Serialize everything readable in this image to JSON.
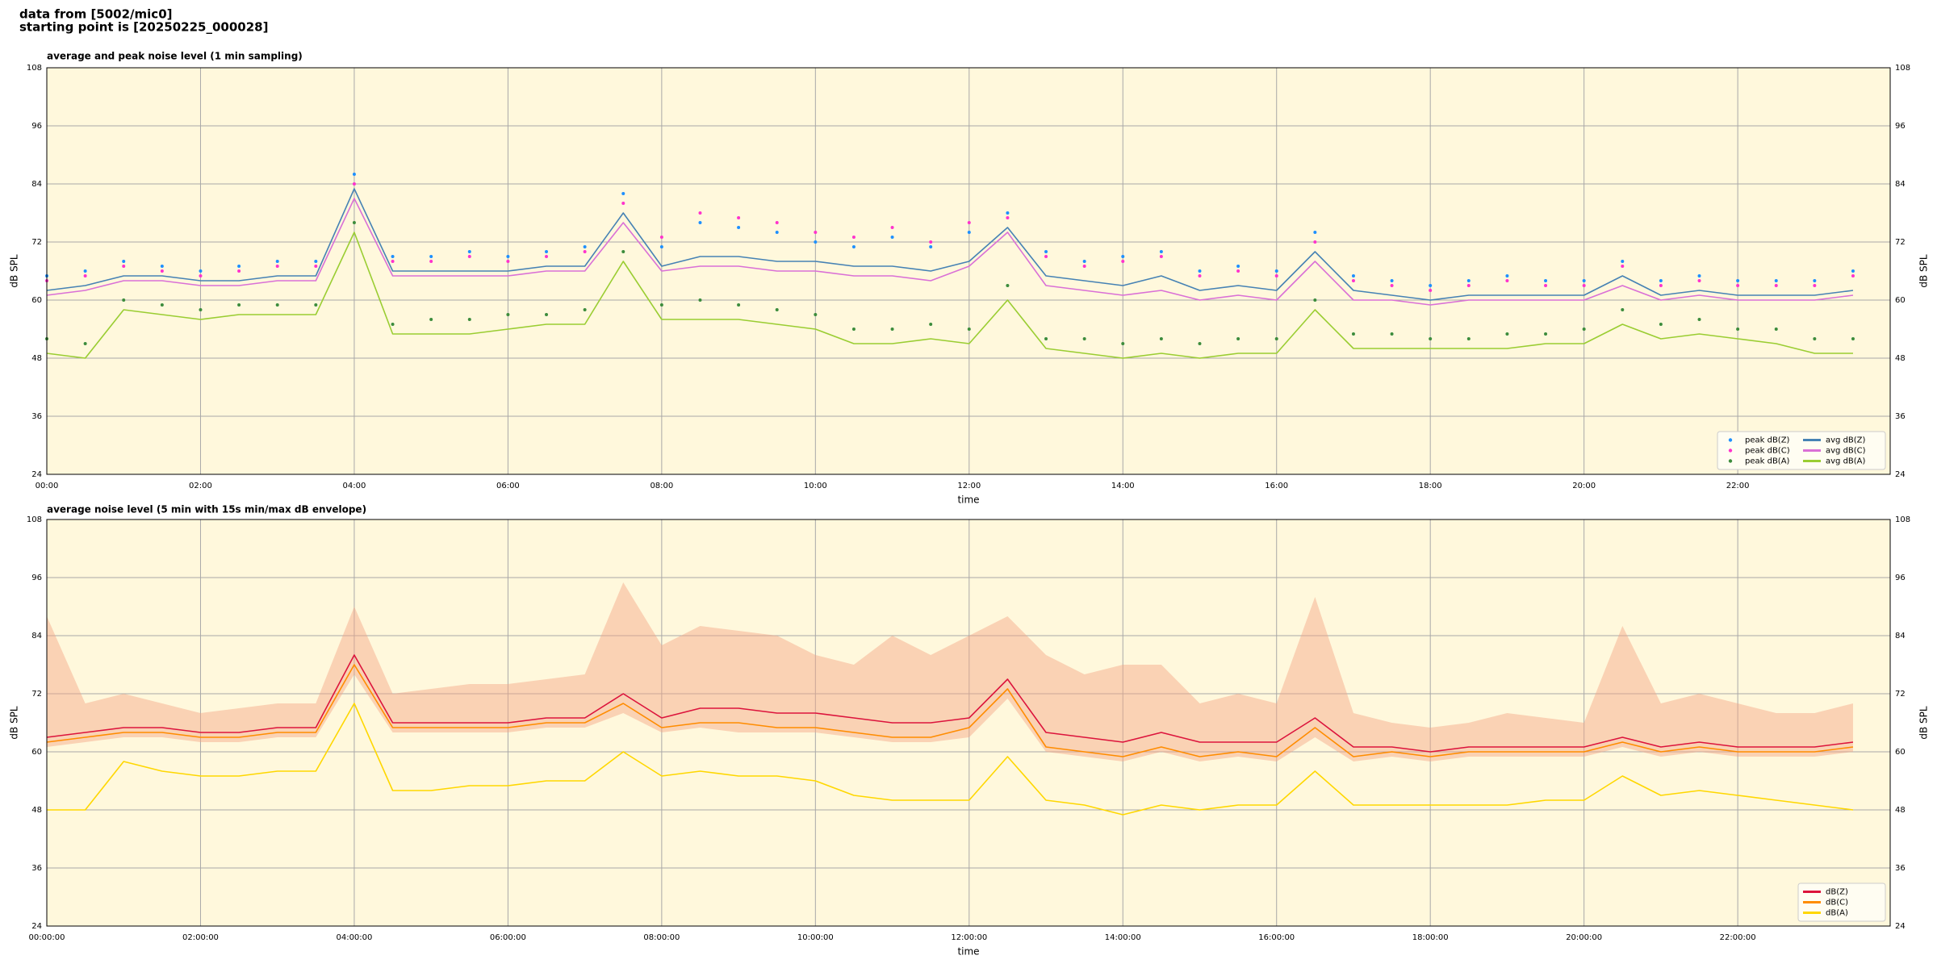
{
  "header": {
    "lines": [
      "data from [5002/mic0]",
      "starting point is [20250225_000028]"
    ]
  },
  "chart_data": [
    {
      "type": "line",
      "title": "average and peak noise level (1 min sampling)",
      "x_label": "time",
      "y_label": "dB SPL",
      "x": [
        "00:00",
        "00:30",
        "01:00",
        "01:30",
        "02:00",
        "02:30",
        "03:00",
        "03:30",
        "04:00",
        "04:30",
        "05:00",
        "05:30",
        "06:00",
        "06:30",
        "07:00",
        "07:30",
        "08:00",
        "08:30",
        "09:00",
        "09:30",
        "10:00",
        "10:30",
        "11:00",
        "11:30",
        "12:00",
        "12:30",
        "13:00",
        "13:30",
        "14:00",
        "14:30",
        "15:00",
        "15:30",
        "16:00",
        "16:30",
        "17:00",
        "17:30",
        "18:00",
        "18:30",
        "19:00",
        "19:30",
        "20:00",
        "20:30",
        "21:00",
        "21:30",
        "22:00",
        "22:30",
        "23:00",
        "23:30"
      ],
      "xlim": [
        "00:00",
        "23:59"
      ],
      "xticks": [
        "00:00",
        "02:00",
        "04:00",
        "06:00",
        "08:00",
        "10:00",
        "12:00",
        "14:00",
        "16:00",
        "18:00",
        "20:00",
        "22:00"
      ],
      "ylim": [
        24,
        108
      ],
      "yticks": [
        24,
        36,
        48,
        60,
        72,
        84,
        96,
        108
      ],
      "grid": true,
      "background": "#fff8dc",
      "legend": "lower right",
      "legend_columns": 2,
      "series": [
        {
          "name": "peak dB(Z)",
          "mark": "dot",
          "color": "#1e90ff",
          "values": [
            65,
            66,
            68,
            67,
            66,
            67,
            68,
            68,
            86,
            69,
            69,
            70,
            69,
            70,
            71,
            82,
            71,
            76,
            75,
            74,
            72,
            71,
            73,
            71,
            74,
            78,
            70,
            68,
            69,
            70,
            66,
            67,
            66,
            74,
            65,
            64,
            63,
            64,
            65,
            64,
            64,
            68,
            64,
            65,
            64,
            64,
            64,
            66
          ]
        },
        {
          "name": "peak dB(C)",
          "mark": "dot",
          "color": "#ff33cc",
          "values": [
            64,
            65,
            67,
            66,
            65,
            66,
            67,
            67,
            84,
            68,
            68,
            69,
            68,
            69,
            70,
            80,
            73,
            78,
            77,
            76,
            74,
            73,
            75,
            72,
            76,
            77,
            69,
            67,
            68,
            69,
            65,
            66,
            65,
            72,
            64,
            63,
            62,
            63,
            64,
            63,
            63,
            67,
            63,
            64,
            63,
            63,
            63,
            65
          ]
        },
        {
          "name": "peak dB(A)",
          "mark": "dot",
          "color": "#3c8c3c",
          "values": [
            52,
            51,
            60,
            59,
            58,
            59,
            59,
            59,
            76,
            55,
            56,
            56,
            57,
            57,
            58,
            70,
            59,
            60,
            59,
            58,
            57,
            54,
            54,
            55,
            54,
            63,
            52,
            52,
            51,
            52,
            51,
            52,
            52,
            60,
            53,
            53,
            52,
            52,
            53,
            53,
            54,
            58,
            55,
            56,
            54,
            54,
            52,
            52
          ]
        },
        {
          "name": "avg dB(Z)",
          "mark": "line",
          "color": "#4682b4",
          "values": [
            62,
            63,
            65,
            65,
            64,
            64,
            65,
            65,
            83,
            66,
            66,
            66,
            66,
            67,
            67,
            78,
            67,
            69,
            69,
            68,
            68,
            67,
            67,
            66,
            68,
            75,
            65,
            64,
            63,
            65,
            62,
            63,
            62,
            70,
            62,
            61,
            60,
            61,
            61,
            61,
            61,
            65,
            61,
            62,
            61,
            61,
            61,
            62
          ]
        },
        {
          "name": "avg dB(C)",
          "mark": "line",
          "color": "#da70d6",
          "values": [
            61,
            62,
            64,
            64,
            63,
            63,
            64,
            64,
            81,
            65,
            65,
            65,
            65,
            66,
            66,
            76,
            66,
            67,
            67,
            66,
            66,
            65,
            65,
            64,
            67,
            74,
            63,
            62,
            61,
            62,
            60,
            61,
            60,
            68,
            60,
            60,
            59,
            60,
            60,
            60,
            60,
            63,
            60,
            61,
            60,
            60,
            60,
            61
          ]
        },
        {
          "name": "avg dB(A)",
          "mark": "line",
          "color": "#9acd32",
          "values": [
            49,
            48,
            58,
            57,
            56,
            57,
            57,
            57,
            74,
            53,
            53,
            53,
            54,
            55,
            55,
            68,
            56,
            56,
            56,
            55,
            54,
            51,
            51,
            52,
            51,
            60,
            50,
            49,
            48,
            49,
            48,
            49,
            49,
            58,
            50,
            50,
            50,
            50,
            50,
            51,
            51,
            55,
            52,
            53,
            52,
            51,
            49,
            49
          ]
        }
      ]
    },
    {
      "type": "line",
      "title": "average noise level (5 min with 15s min/max dB envelope)",
      "x_label": "time",
      "y_label": "dB SPL",
      "x": [
        "00:00:00",
        "00:30:00",
        "01:00:00",
        "01:30:00",
        "02:00:00",
        "02:30:00",
        "03:00:00",
        "03:30:00",
        "04:00:00",
        "04:30:00",
        "05:00:00",
        "05:30:00",
        "06:00:00",
        "06:30:00",
        "07:00:00",
        "07:30:00",
        "08:00:00",
        "08:30:00",
        "09:00:00",
        "09:30:00",
        "10:00:00",
        "10:30:00",
        "11:00:00",
        "11:30:00",
        "12:00:00",
        "12:30:00",
        "13:00:00",
        "13:30:00",
        "14:00:00",
        "14:30:00",
        "15:00:00",
        "15:30:00",
        "16:00:00",
        "16:30:00",
        "17:00:00",
        "17:30:00",
        "18:00:00",
        "18:30:00",
        "19:00:00",
        "19:30:00",
        "20:00:00",
        "20:30:00",
        "21:00:00",
        "21:30:00",
        "22:00:00",
        "22:30:00",
        "23:00:00",
        "23:30:00"
      ],
      "xlim": [
        "00:00:00",
        "23:59:00"
      ],
      "xticks": [
        "00:00:00",
        "02:00:00",
        "04:00:00",
        "06:00:00",
        "08:00:00",
        "10:00:00",
        "12:00:00",
        "14:00:00",
        "16:00:00",
        "18:00:00",
        "20:00:00",
        "22:00:00"
      ],
      "ylim": [
        24,
        108
      ],
      "yticks": [
        24,
        36,
        48,
        60,
        72,
        84,
        96,
        108
      ],
      "grid": true,
      "background": "#fff8dc",
      "legend": "lower right",
      "legend_columns": 1,
      "envelope": {
        "color": "#f4a582",
        "low": [
          61,
          62,
          63,
          63,
          62,
          62,
          63,
          63,
          76,
          64,
          64,
          64,
          64,
          65,
          65,
          68,
          64,
          65,
          64,
          64,
          64,
          63,
          62,
          62,
          63,
          71,
          60,
          59,
          58,
          60,
          58,
          59,
          58,
          63,
          58,
          59,
          58,
          59,
          59,
          59,
          59,
          61,
          59,
          60,
          59,
          59,
          59,
          60
        ],
        "high": [
          88,
          70,
          72,
          70,
          68,
          69,
          70,
          70,
          90,
          72,
          73,
          74,
          74,
          75,
          76,
          95,
          82,
          86,
          85,
          84,
          80,
          78,
          84,
          80,
          84,
          88,
          80,
          76,
          78,
          78,
          70,
          72,
          70,
          92,
          68,
          66,
          65,
          66,
          68,
          67,
          66,
          86,
          70,
          72,
          70,
          68,
          68,
          70
        ]
      },
      "series": [
        {
          "name": "dB(Z)",
          "mark": "line",
          "color": "#dc143c",
          "values": [
            63,
            64,
            65,
            65,
            64,
            64,
            65,
            65,
            80,
            66,
            66,
            66,
            66,
            67,
            67,
            72,
            67,
            69,
            69,
            68,
            68,
            67,
            66,
            66,
            67,
            75,
            64,
            63,
            62,
            64,
            62,
            62,
            62,
            67,
            61,
            61,
            60,
            61,
            61,
            61,
            61,
            63,
            61,
            62,
            61,
            61,
            61,
            62
          ]
        },
        {
          "name": "dB(C)",
          "mark": "line",
          "color": "#ff8c00",
          "values": [
            62,
            63,
            64,
            64,
            63,
            63,
            64,
            64,
            78,
            65,
            65,
            65,
            65,
            66,
            66,
            70,
            65,
            66,
            66,
            65,
            65,
            64,
            63,
            63,
            65,
            73,
            61,
            60,
            59,
            61,
            59,
            60,
            59,
            65,
            59,
            60,
            59,
            60,
            60,
            60,
            60,
            62,
            60,
            61,
            60,
            60,
            60,
            61
          ]
        },
        {
          "name": "dB(A)",
          "mark": "line",
          "color": "#ffd700",
          "values": [
            48,
            48,
            58,
            56,
            55,
            55,
            56,
            56,
            70,
            52,
            52,
            53,
            53,
            54,
            54,
            60,
            55,
            56,
            55,
            55,
            54,
            51,
            50,
            50,
            50,
            59,
            50,
            49,
            47,
            49,
            48,
            49,
            49,
            56,
            49,
            49,
            49,
            49,
            49,
            50,
            50,
            55,
            51,
            52,
            51,
            50,
            49,
            48
          ]
        }
      ]
    }
  ]
}
